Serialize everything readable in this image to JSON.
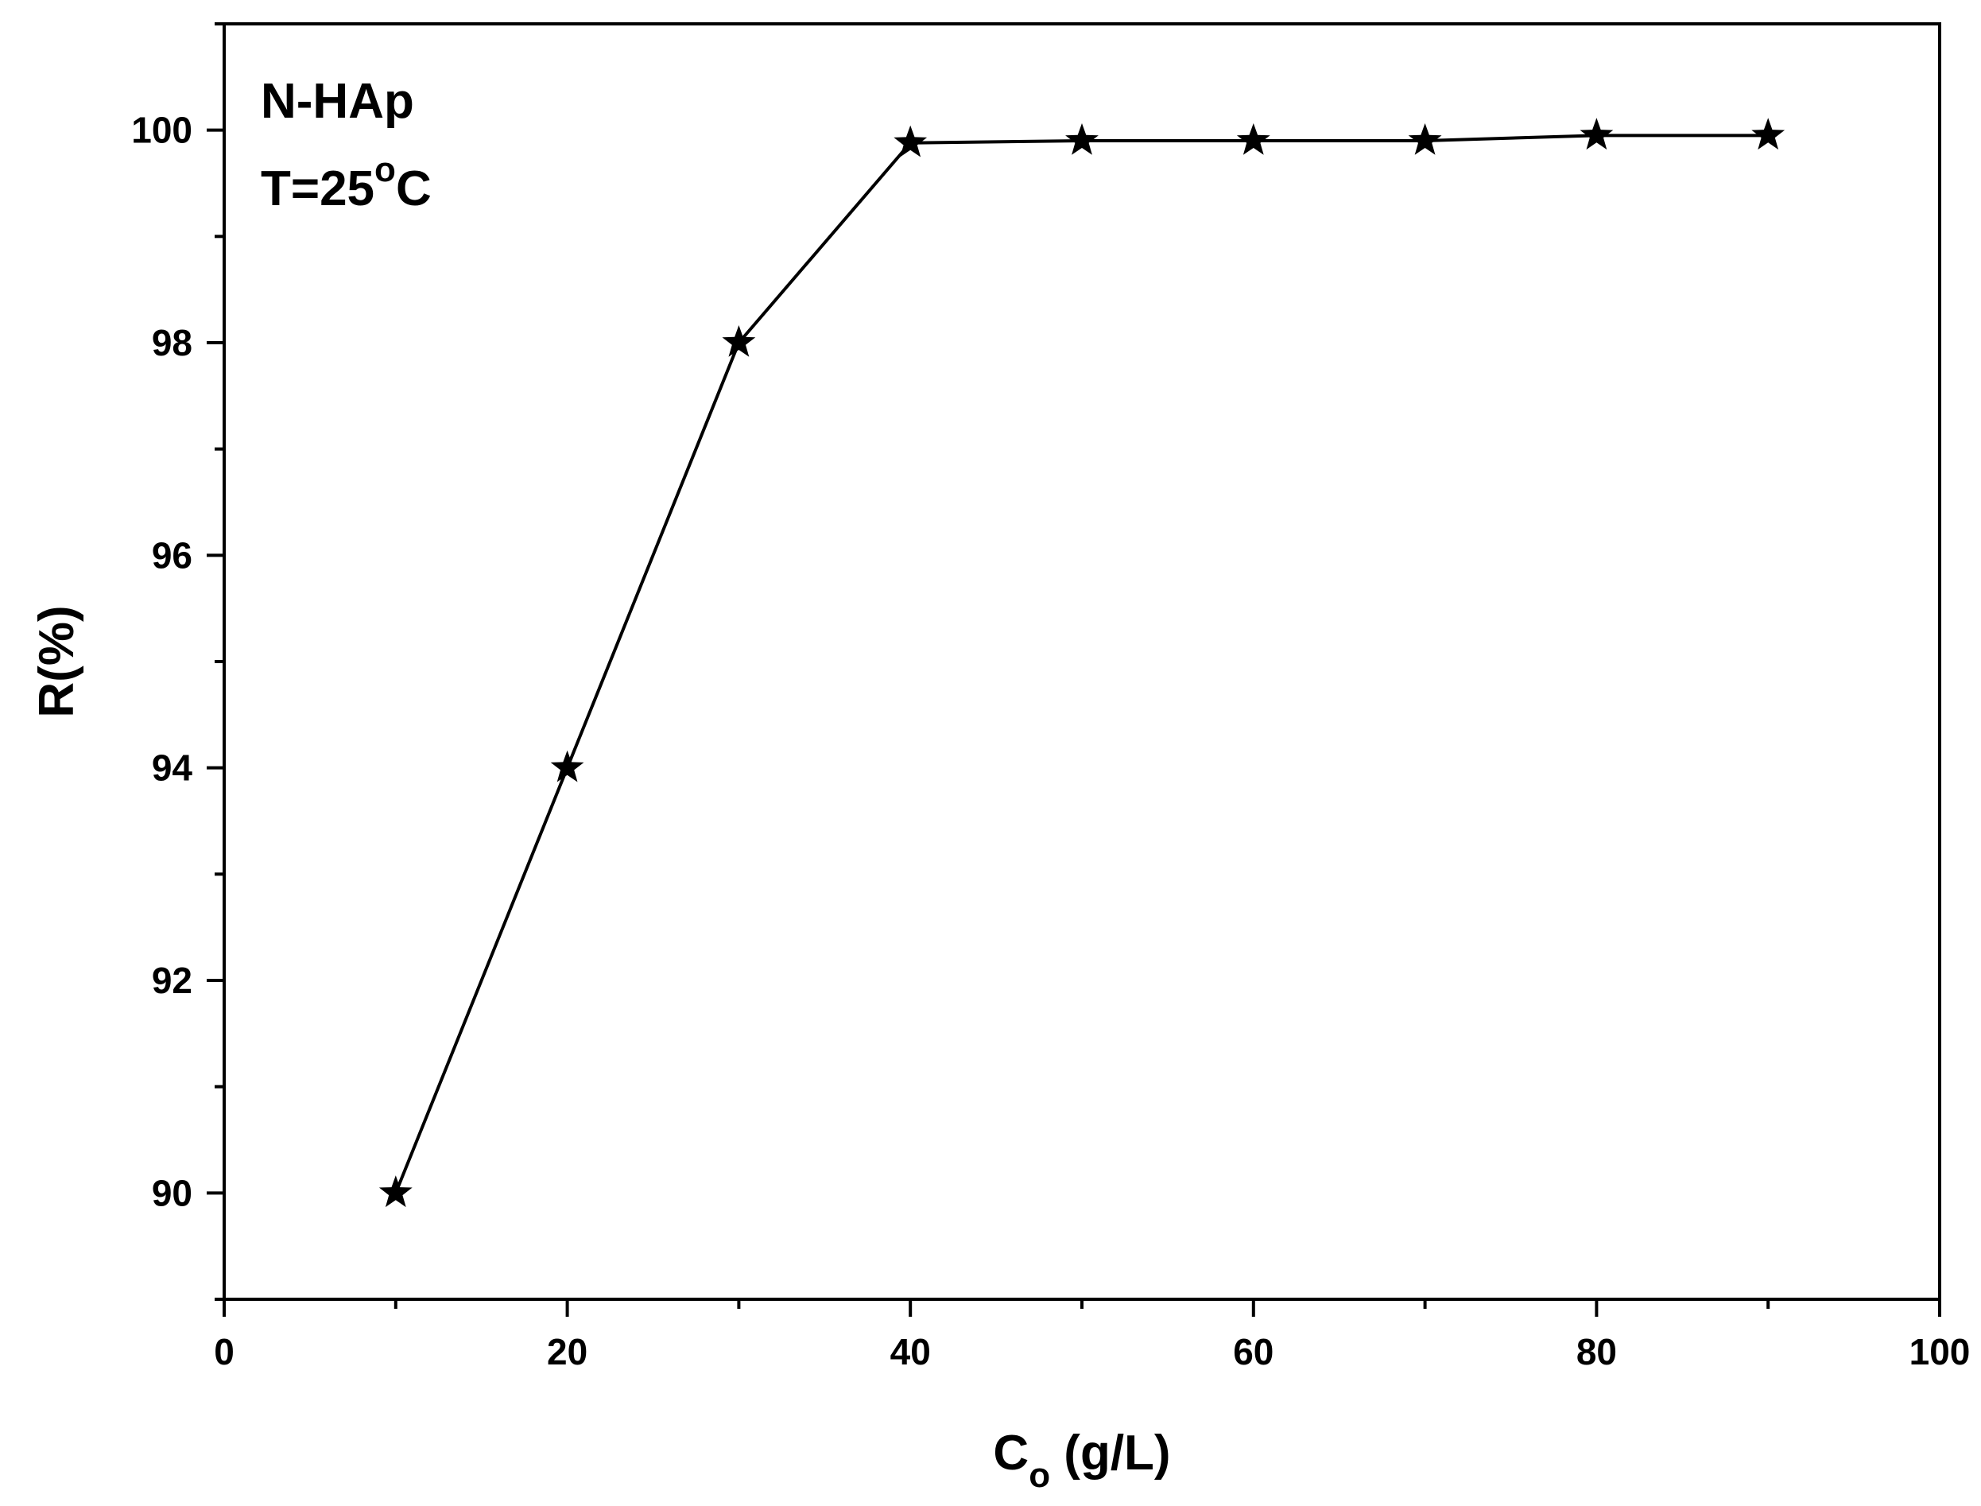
{
  "chart_data": {
    "type": "line",
    "title": "",
    "annotations": {
      "line1": "N-HAp",
      "line2_prefix": "T=25",
      "line2_sup": "o",
      "line2_suffix": "C"
    },
    "xlabel": {
      "main": "C",
      "sub": "o",
      "rest": " (g/L)"
    },
    "ylabel": "R(%)",
    "xlim": [
      0,
      100
    ],
    "ylim": [
      89,
      101
    ],
    "x_ticks": [
      0,
      20,
      40,
      60,
      80,
      100
    ],
    "x_minor_ticks": [
      10,
      30,
      50,
      70,
      90
    ],
    "y_ticks": [
      90,
      92,
      94,
      96,
      98,
      100
    ],
    "y_minor_ticks": [
      89,
      91,
      93,
      95,
      97,
      99,
      101
    ],
    "marker": "star",
    "grid": false,
    "series": [
      {
        "color": "#000000",
        "x": [
          10,
          20,
          30,
          40,
          50,
          60,
          70,
          80,
          90
        ],
        "y": [
          90.0,
          94.0,
          98.0,
          99.88,
          99.9,
          99.9,
          99.9,
          99.95,
          99.95
        ]
      }
    ]
  }
}
